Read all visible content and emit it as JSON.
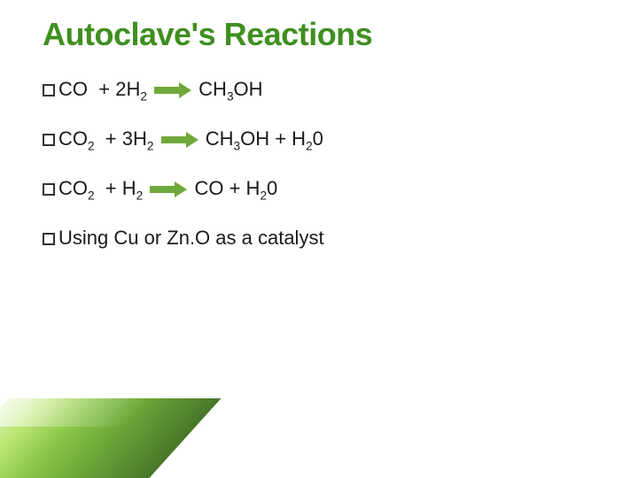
{
  "title": {
    "text": "Autoclave's Reactions",
    "color": "#3f8f1f",
    "fontsize": 36
  },
  "arrow_color": "#6fa83a",
  "text_color": "#1a1a1a",
  "body_fontsize": 22,
  "equations": [
    {
      "lhs_species": "CO",
      "lhs_sub": "",
      "lhs_h_coeff": "2",
      "rhs": "CH",
      "rhs_sub1": "3",
      "rhs_tail": "OH",
      "extra": ""
    },
    {
      "lhs_species": "CO",
      "lhs_sub": "2",
      "lhs_h_coeff": "3",
      "rhs": "CH",
      "rhs_sub1": "3",
      "rhs_tail": "OH + H",
      "extra_sub": "2",
      "extra_tail": "0"
    },
    {
      "lhs_species": "CO",
      "lhs_sub": "2",
      "lhs_h_coeff": "",
      "rhs": "CO + H",
      "rhs_sub1": "2",
      "rhs_tail": "0",
      "extra": ""
    }
  ],
  "note": {
    "prefix": "Using",
    "rest": " Cu or Zn.O as a catalyst"
  },
  "accent_gradient": [
    "#d6f0a8",
    "#b7e46b",
    "#86c440",
    "#67a62f",
    "#3f6f1f"
  ]
}
